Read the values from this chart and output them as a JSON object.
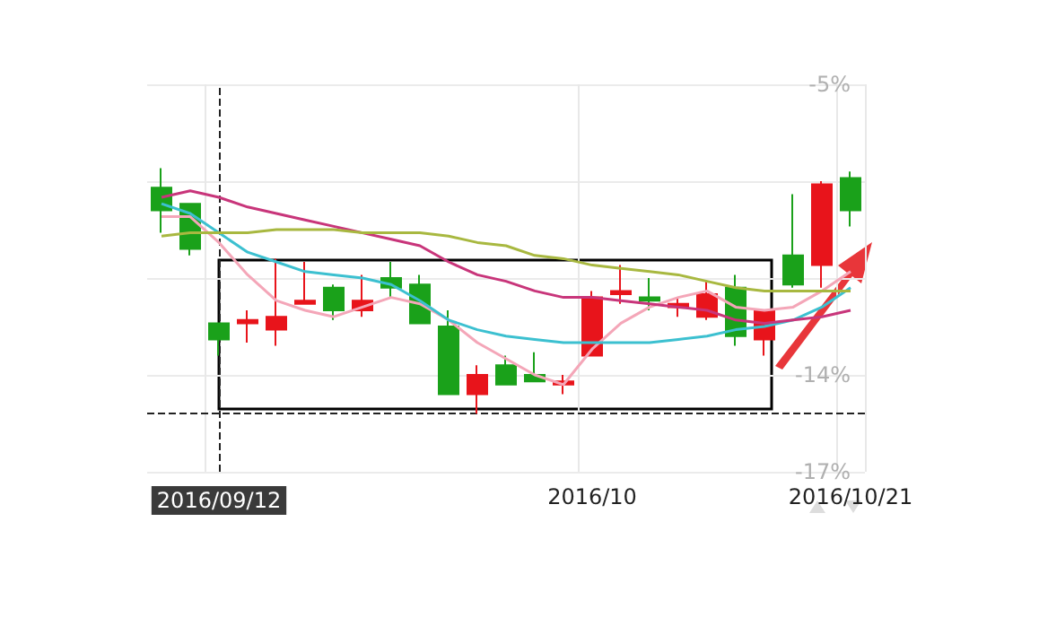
{
  "chart_data": {
    "type": "candlestick",
    "categories": [
      null,
      null,
      "2016/09/12",
      null,
      null,
      null,
      null,
      null,
      null,
      null,
      null,
      null,
      null,
      null,
      null,
      "2016/10",
      null,
      null,
      null,
      null,
      null,
      null,
      null,
      null,
      "2016/10/21"
    ],
    "ohlc": [
      [
        -8.2,
        -7.6,
        -9.6,
        -8.9
      ],
      [
        -8.7,
        -8.7,
        -10.3,
        -10.1
      ],
      [
        -12.4,
        -12.4,
        -13.4,
        -12.9
      ],
      [
        -12.4,
        -12.0,
        -13.0,
        -12.3
      ],
      [
        -12.6,
        -10.4,
        -13.1,
        -12.2
      ],
      [
        -11.8,
        -10.5,
        -11.8,
        -11.7
      ],
      [
        -11.3,
        -11.2,
        -12.3,
        -12.0
      ],
      [
        -12.0,
        -10.9,
        -12.2,
        -11.7
      ],
      [
        -11.0,
        -10.5,
        -11.6,
        -11.3
      ],
      [
        -11.2,
        -10.9,
        -12.4,
        -12.4
      ],
      [
        -12.5,
        -12.0,
        -14.6,
        -14.6
      ],
      [
        -14.6,
        -13.7,
        -15.2,
        -14.0
      ],
      [
        -13.7,
        -13.4,
        -14.3,
        -14.3
      ],
      [
        -14.0,
        -13.3,
        -14.2,
        -14.2
      ],
      [
        -14.3,
        -14.0,
        -14.6,
        -14.2
      ],
      [
        -13.4,
        -11.4,
        -13.4,
        -11.6
      ],
      [
        -11.5,
        -10.6,
        -11.8,
        -11.4
      ],
      [
        -11.6,
        -11.0,
        -12.0,
        -11.7
      ],
      [
        -11.9,
        -11.6,
        -12.2,
        -11.8
      ],
      [
        -12.2,
        -11.1,
        -12.3,
        -11.5
      ],
      [
        -11.3,
        -10.9,
        -13.1,
        -12.8
      ],
      [
        -12.9,
        -12.0,
        -13.4,
        -12.0
      ],
      [
        -10.3,
        -8.4,
        -11.3,
        -11.2
      ],
      [
        -10.6,
        -8.0,
        -11.3,
        -8.1
      ],
      [
        -7.9,
        -7.7,
        -9.4,
        -8.9
      ]
    ],
    "colors": [
      "#1aa11a",
      "#1aa11a",
      "#1aa11a",
      "#e8141b",
      "#e8141b",
      "#e8141b",
      "#1aa11a",
      "#e8141b",
      "#1aa11a",
      "#1aa11a",
      "#1aa11a",
      "#e8141b",
      "#1aa11a",
      "#1aa11a",
      "#e8141b",
      "#e8141b",
      "#e8141b",
      "#1aa11a",
      "#e8141b",
      "#e8141b",
      "#1aa11a",
      "#e8141b",
      "#1aa11a",
      "#e8141b",
      "#1aa11a"
    ],
    "series": [
      {
        "type": "line",
        "color": "#f4a6b8",
        "values": [
          -9.1,
          -9.1,
          -9.9,
          -10.9,
          -11.7,
          -12.0,
          -12.2,
          -11.9,
          -11.6,
          -11.8,
          -12.3,
          -13.0,
          -13.5,
          -14.0,
          -14.3,
          -13.2,
          -12.4,
          -11.9,
          -11.6,
          -11.4,
          -11.9,
          -12.0,
          -11.9,
          -11.4,
          -10.8
        ]
      },
      {
        "type": "line",
        "color": "#3cc0d0",
        "values": [
          -8.7,
          -9.0,
          -9.6,
          -10.2,
          -10.5,
          -10.8,
          -10.9,
          -11.0,
          -11.2,
          -11.7,
          -12.3,
          -12.6,
          -12.8,
          -12.9,
          -13.0,
          -13.0,
          -13.0,
          -13.0,
          -12.9,
          -12.8,
          -12.6,
          -12.5,
          -12.3,
          -11.9,
          -11.3
        ]
      },
      {
        "type": "line",
        "color": "#c8357a",
        "values": [
          -8.5,
          -8.3,
          -8.5,
          -8.8,
          -9.0,
          -9.2,
          -9.4,
          -9.6,
          -9.8,
          -10.0,
          -10.5,
          -10.9,
          -11.1,
          -11.4,
          -11.6,
          -11.6,
          -11.7,
          -11.8,
          -11.9,
          -12.0,
          -12.3,
          -12.4,
          -12.3,
          -12.2,
          -12.0
        ]
      },
      {
        "type": "line",
        "color": "#a8b840",
        "values": [
          -9.7,
          -9.6,
          -9.6,
          -9.6,
          -9.5,
          -9.5,
          -9.5,
          -9.6,
          -9.6,
          -9.6,
          -9.7,
          -9.9,
          -10.0,
          -10.3,
          -10.4,
          -10.6,
          -10.7,
          -10.8,
          -10.9,
          -11.1,
          -11.3,
          -11.4,
          -11.4,
          -11.4,
          -11.4
        ]
      }
    ],
    "ylim": [
      -17,
      -5
    ],
    "yticks": [
      {
        "value": -5,
        "label": "-5%"
      },
      {
        "value": -8,
        "label": null
      },
      {
        "value": -11,
        "label": null
      },
      {
        "value": -14,
        "label": "-14%"
      },
      {
        "value": -17,
        "label": "-17%"
      }
    ],
    "ref_lines": [
      {
        "axis": "x",
        "value": "2016/09/12",
        "color": "#222222",
        "line_style": "dashed"
      },
      {
        "axis": "y",
        "value": -15.2,
        "color": "#222222",
        "line_style": "dashed"
      }
    ],
    "grid": true
  }
}
